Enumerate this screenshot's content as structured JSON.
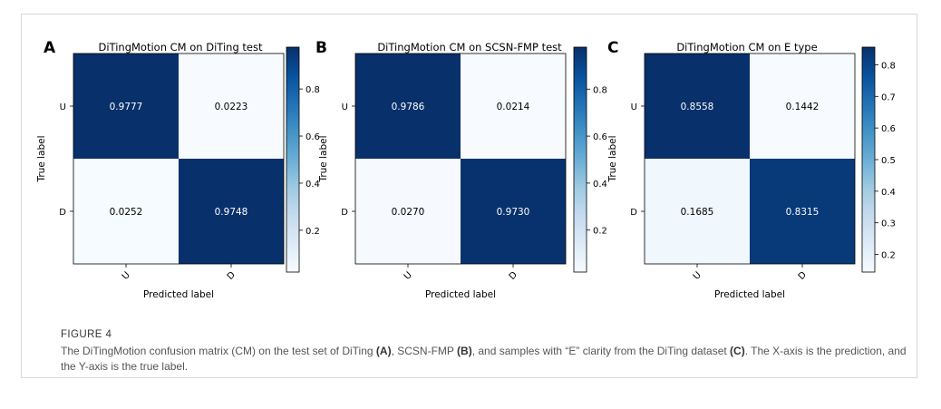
{
  "figure": {
    "heading": "FIGURE 4",
    "caption": {
      "p1": "The DiTingMotion confusion matrix (CM) on the test set of DiTing ",
      "A": "(A)",
      "p2": ", SCSN-FMP ",
      "B": "(B)",
      "p3": ", and samples with “E” clarity from the DiTing dataset ",
      "C": "(C)",
      "p4": ". The X-axis is the prediction, and the Y-axis is the true label."
    }
  },
  "colors": {
    "dark": "#08306b",
    "light": "#f7fbff",
    "text_dark": "#000000",
    "text_light": "#ffffff"
  },
  "chart_data": [
    {
      "type": "heatmap",
      "panel": "A",
      "title": "DiTingMotion CM on DiTing test",
      "xlabel": "Predicted label",
      "ylabel": "True label",
      "x_categories": [
        "U",
        "D"
      ],
      "y_categories": [
        "U",
        "D"
      ],
      "values": [
        [
          0.9777,
          0.0223
        ],
        [
          0.0252,
          0.9748
        ]
      ],
      "value_labels": [
        [
          "0.9777",
          "0.0223"
        ],
        [
          "0.0252",
          "0.9748"
        ]
      ],
      "colormap": "Blues",
      "colorbar_range": [
        0.0223,
        0.9777
      ],
      "colorbar_ticks": [
        0.2,
        0.4,
        0.6,
        0.8
      ],
      "colorbar_tick_labels": [
        "0.2",
        "0.4",
        "0.6",
        "0.8"
      ]
    },
    {
      "type": "heatmap",
      "panel": "B",
      "title": "DiTingMotion CM on SCSN-FMP test",
      "xlabel": "Predicted label",
      "ylabel": "True label",
      "x_categories": [
        "U",
        "D"
      ],
      "y_categories": [
        "U",
        "D"
      ],
      "values": [
        [
          0.9786,
          0.0214
        ],
        [
          0.027,
          0.973
        ]
      ],
      "value_labels": [
        [
          "0.9786",
          "0.0214"
        ],
        [
          "0.0270",
          "0.9730"
        ]
      ],
      "colormap": "Blues",
      "colorbar_range": [
        0.0214,
        0.9786
      ],
      "colorbar_ticks": [
        0.2,
        0.4,
        0.6,
        0.8
      ],
      "colorbar_tick_labels": [
        "0.2",
        "0.4",
        "0.6",
        "0.8"
      ]
    },
    {
      "type": "heatmap",
      "panel": "C",
      "title": "DiTingMotion CM on E type",
      "xlabel": "Predicted label",
      "ylabel": "True label",
      "x_categories": [
        "U",
        "D"
      ],
      "y_categories": [
        "U",
        "D"
      ],
      "values": [
        [
          0.8558,
          0.1442
        ],
        [
          0.1685,
          0.8315
        ]
      ],
      "value_labels": [
        [
          "0.8558",
          "0.1442"
        ],
        [
          "0.1685",
          "0.8315"
        ]
      ],
      "colormap": "Blues",
      "colorbar_range": [
        0.1442,
        0.8558
      ],
      "colorbar_ticks": [
        0.2,
        0.3,
        0.4,
        0.5,
        0.6,
        0.7,
        0.8
      ],
      "colorbar_tick_labels": [
        "0.2",
        "0.3",
        "0.4",
        "0.5",
        "0.6",
        "0.7",
        "0.8"
      ]
    }
  ]
}
